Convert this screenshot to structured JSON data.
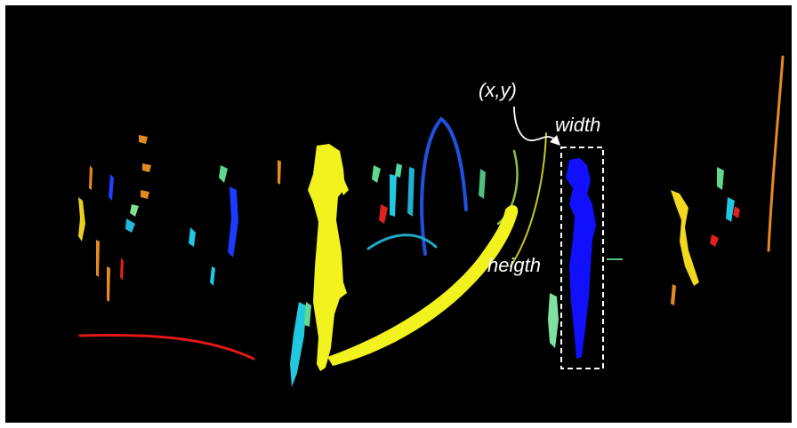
{
  "annotations": {
    "origin_label": "(x,y)",
    "width_label": "width",
    "height_label": "heigth"
  },
  "colors": {
    "background": "#000000",
    "yellow": "#f2f21e",
    "blue": "#1010ff",
    "cyan": "#20c8e0",
    "red": "#e01818",
    "orange": "#e88a20",
    "green": "#60d890",
    "annotation": "#ffffff"
  }
}
